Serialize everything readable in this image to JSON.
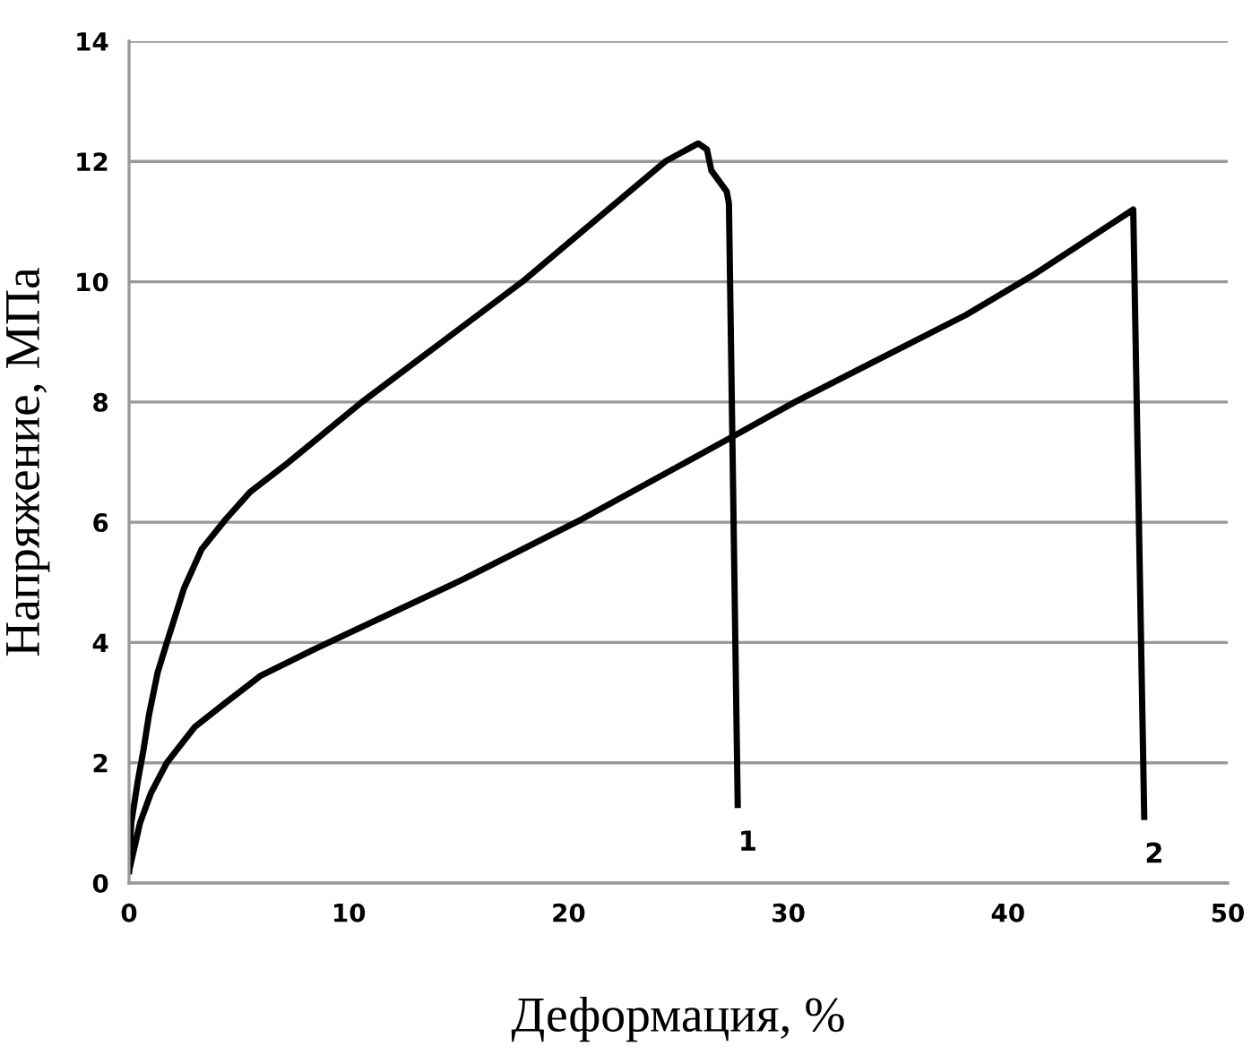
{
  "chart_data": {
    "type": "line",
    "xlabel": "Деформация, %",
    "ylabel": "Напряжение, МПа",
    "xlim": [
      0,
      50
    ],
    "xticks": [
      0,
      10,
      20,
      30,
      40,
      50
    ],
    "ylim": [
      0,
      14
    ],
    "yticks": [
      0,
      2,
      4,
      6,
      8,
      10,
      12,
      14
    ],
    "grid": "y",
    "marker": "none",
    "line_style": "solid",
    "series": [
      {
        "color": "#000000",
        "x": [
          0,
          0.1,
          0.4,
          0.65,
          0.91,
          1.3,
          1.72,
          2.5,
          3.3,
          4.4,
          5.5,
          7.1,
          10.6,
          17.9,
          24.4,
          25.9,
          26.3,
          26.5,
          27.2,
          27.3,
          27.7
        ],
        "values": [
          0.2,
          1.0,
          1.7,
          2.2,
          2.8,
          3.5,
          4.0,
          4.9,
          5.55,
          6.05,
          6.5,
          6.95,
          8.0,
          10.0,
          12.0,
          12.3,
          12.2,
          11.85,
          11.5,
          11.3,
          1.3
        ]
      },
      {
        "color": "#000000",
        "x": [
          0,
          0.5,
          1.0,
          1.72,
          3.0,
          4.4,
          6.0,
          8.5,
          15.2,
          20.6,
          27.6,
          30.3,
          33.8,
          38.1,
          41.1,
          45.7,
          46.2
        ],
        "values": [
          0.2,
          1.0,
          1.5,
          2.0,
          2.6,
          3.0,
          3.45,
          3.9,
          5.05,
          6.05,
          7.45,
          8.0,
          8.65,
          9.45,
          10.1,
          11.2,
          1.1
        ]
      }
    ],
    "annotations": [
      "1",
      "2"
    ]
  }
}
